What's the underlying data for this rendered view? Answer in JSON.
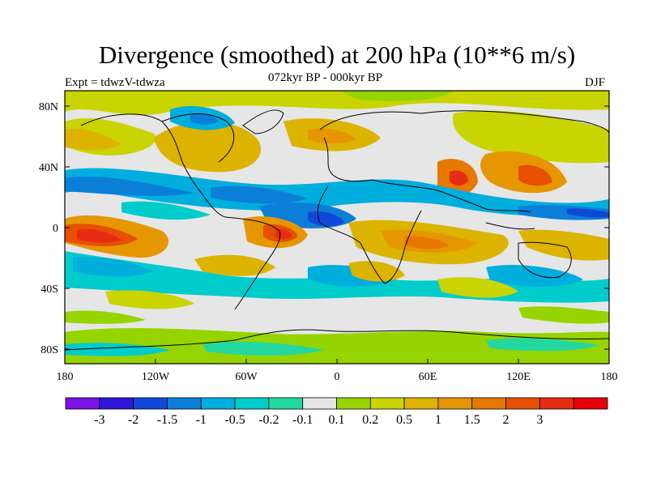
{
  "figure": {
    "title": "Divergence (smoothed) at 200 hPa (10**6 m/s)",
    "subtitle": "072kyr BP - 000kyr BP",
    "experiment": "Expt = tdwzV-tdwza",
    "season": "DJF"
  },
  "map": {
    "lat_ticks": [
      "80N",
      "40N",
      "0",
      "40S",
      "80S"
    ],
    "lon_ticks": [
      "180",
      "120W",
      "60W",
      "0",
      "60E",
      "120E",
      "180"
    ]
  },
  "colorbar": {
    "colors": [
      "#7b12e6",
      "#2f16d9",
      "#0f48d8",
      "#0b7fd8",
      "#00aede",
      "#00cccc",
      "#22d8a0",
      "#e6e6e6",
      "#96d400",
      "#c9d400",
      "#dcb400",
      "#e69600",
      "#e67800",
      "#e65000",
      "#e62d14",
      "#e6000a"
    ],
    "labels": [
      "-3",
      "-2",
      "-1.5",
      "-1",
      "-0.5",
      "-0.2",
      "-0.1",
      "0.1",
      "0.2",
      "0.5",
      "1",
      "1.5",
      "2",
      "3"
    ]
  }
}
